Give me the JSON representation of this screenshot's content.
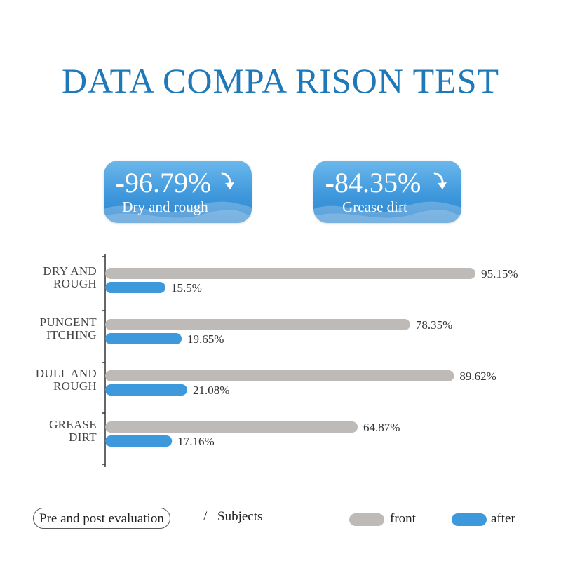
{
  "title": "DATA COMPA RISON TEST",
  "badges": [
    {
      "value": "-96.79%",
      "label": "Dry and rough"
    },
    {
      "value": "-84.35%",
      "label": "Grease dirt"
    }
  ],
  "legend": {
    "evaluation": "Pre and post evaluation",
    "separator": "/",
    "subjects": "Subjects"
  },
  "colors": {
    "front": "#bdbab7",
    "after": "#3d99db",
    "title": "#1f78b8"
  },
  "chart_data": {
    "type": "bar",
    "orientation": "horizontal",
    "title": "DATA COMPA RISON TEST",
    "categories": [
      [
        "DRY AND",
        "ROUGH"
      ],
      [
        "PUNGENT",
        "ITCHING"
      ],
      [
        "DULL AND",
        "ROUGH"
      ],
      [
        "GREASE",
        "DIRT"
      ]
    ],
    "series": [
      {
        "name": "front",
        "values": [
          95.15,
          78.35,
          89.62,
          64.87
        ],
        "labels": [
          "95.15%",
          "78.35%",
          "89.62%",
          "64.87%"
        ]
      },
      {
        "name": "after",
        "values": [
          15.5,
          19.65,
          21.08,
          17.16
        ],
        "labels": [
          "15.5%",
          "19.65%",
          "21.08%",
          "17.16%"
        ]
      }
    ],
    "xlim": [
      0,
      100
    ],
    "legend": "bottom-right",
    "grid": false
  }
}
